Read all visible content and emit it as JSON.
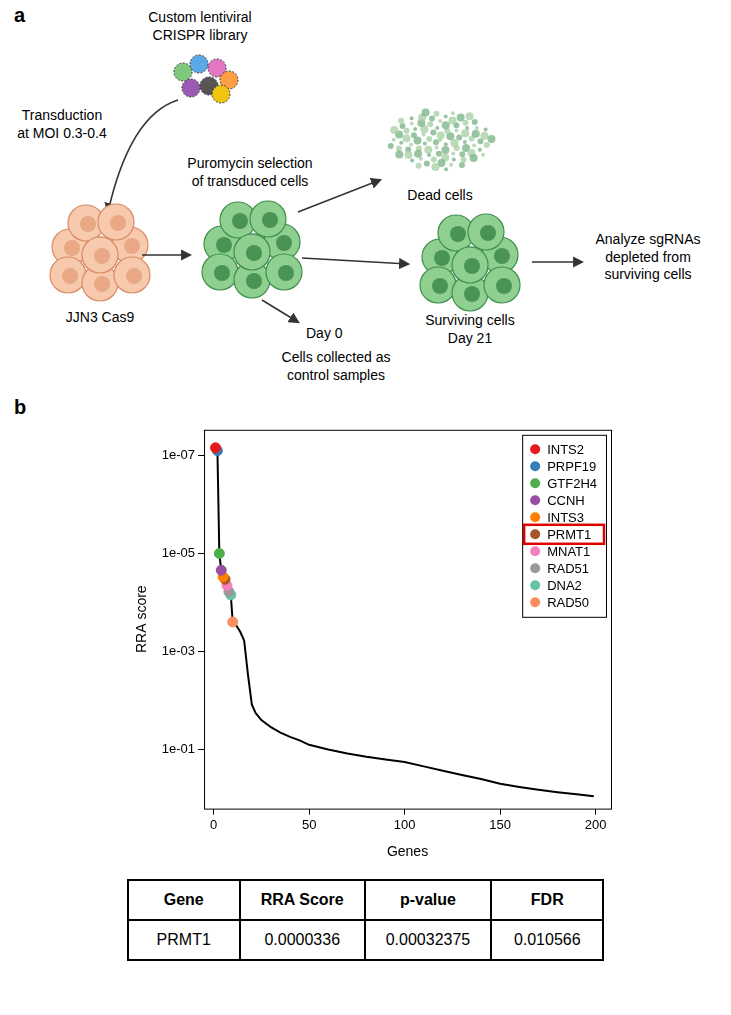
{
  "diagram": {
    "panel_label": "a",
    "library_label": [
      "Custom lentiviral",
      "CRISPR library"
    ],
    "transduction_label": [
      "Transduction",
      "at MOI 0.3-0.4"
    ],
    "cell_line_label": "JJN3 Cas9",
    "selection_label": [
      "Puromycin selection",
      "of transduced cells"
    ],
    "dead_label": "Dead cells",
    "control_time_label": "Day 0",
    "control_label": [
      "Cells collected as",
      "control samples"
    ],
    "surviving_label": [
      "Surviving cells",
      "Day 21"
    ],
    "analysis_label": [
      "Analyze sgRNAs",
      "depleted from",
      "surviving cells"
    ]
  },
  "chart_data": {
    "type": "line",
    "panel_label": "b",
    "x_label": "Genes",
    "y_label": "RRA score",
    "log": "y",
    "grid": false,
    "legend": "top-right",
    "xlim": [
      -5,
      208
    ],
    "xticks": [
      0,
      50,
      100,
      150,
      200
    ],
    "ylim": [
      1.6,
      3e-08
    ],
    "yticks": [
      {
        "value": 1e-07,
        "label": "1e-07"
      },
      {
        "value": 1e-05,
        "label": "1e-05"
      },
      {
        "value": 0.001,
        "label": "1e-03"
      },
      {
        "value": 0.1,
        "label": "1e-01"
      }
    ],
    "series": [
      {
        "type": "line",
        "color": "#000000",
        "line_style": "solid",
        "x": [
          1,
          2,
          3,
          4,
          5,
          6,
          7,
          8,
          9,
          10,
          12,
          14,
          16,
          18,
          20,
          22,
          25,
          30,
          35,
          40,
          45,
          50,
          60,
          70,
          80,
          90,
          100,
          110,
          120,
          130,
          140,
          150,
          160,
          170,
          180,
          190,
          199
        ],
        "values": [
          7e-08,
          8e-08,
          1e-05,
          2.2e-05,
          3e-05,
          3.36e-05,
          4.5e-05,
          6e-05,
          7e-05,
          0.00025,
          0.0003,
          0.0004,
          0.0006,
          0.003,
          0.012,
          0.018,
          0.025,
          0.035,
          0.045,
          0.055,
          0.065,
          0.08,
          0.1,
          0.12,
          0.14,
          0.16,
          0.18,
          0.22,
          0.27,
          0.33,
          0.4,
          0.5,
          0.58,
          0.66,
          0.74,
          0.82,
          0.9
        ]
      },
      {
        "name": "INTS2",
        "type": "scatter",
        "marker": "circle",
        "color": "#e41a1c",
        "x": [
          1
        ],
        "values": [
          7e-08
        ]
      },
      {
        "name": "PRPF19",
        "type": "scatter",
        "marker": "circle",
        "color": "#377eb8",
        "x": [
          2
        ],
        "values": [
          8e-08
        ]
      },
      {
        "name": "GTF2H4",
        "type": "scatter",
        "marker": "circle",
        "color": "#4daf4a",
        "x": [
          3
        ],
        "values": [
          1e-05
        ]
      },
      {
        "name": "CCNH",
        "type": "scatter",
        "marker": "circle",
        "color": "#984ea3",
        "x": [
          4
        ],
        "values": [
          2.2e-05
        ]
      },
      {
        "name": "INTS3",
        "type": "scatter",
        "marker": "circle",
        "color": "#ff7f00",
        "x": [
          5
        ],
        "values": [
          3e-05
        ]
      },
      {
        "name": "PRMT1",
        "type": "scatter",
        "marker": "circle",
        "color": "#a65628",
        "x": [
          6
        ],
        "values": [
          3.36e-05
        ]
      },
      {
        "name": "MNAT1",
        "type": "scatter",
        "marker": "circle",
        "color": "#f781bf",
        "x": [
          7
        ],
        "values": [
          4.5e-05
        ]
      },
      {
        "name": "RAD51",
        "type": "scatter",
        "marker": "circle",
        "color": "#999999",
        "x": [
          8
        ],
        "values": [
          6e-05
        ]
      },
      {
        "name": "DNA2",
        "type": "scatter",
        "marker": "circle",
        "color": "#66c2a5",
        "x": [
          9
        ],
        "values": [
          7e-05
        ]
      },
      {
        "name": "RAD50",
        "type": "scatter",
        "marker": "circle",
        "color": "#fc8d62",
        "x": [
          10
        ],
        "values": [
          0.00025
        ]
      }
    ]
  },
  "table": {
    "header": [
      "Gene",
      "RRA Score",
      "p-value",
      "FDR"
    ],
    "rows": [
      [
        "PRMT1",
        "0.0000336",
        "0.00032375",
        "0.010566"
      ]
    ]
  }
}
